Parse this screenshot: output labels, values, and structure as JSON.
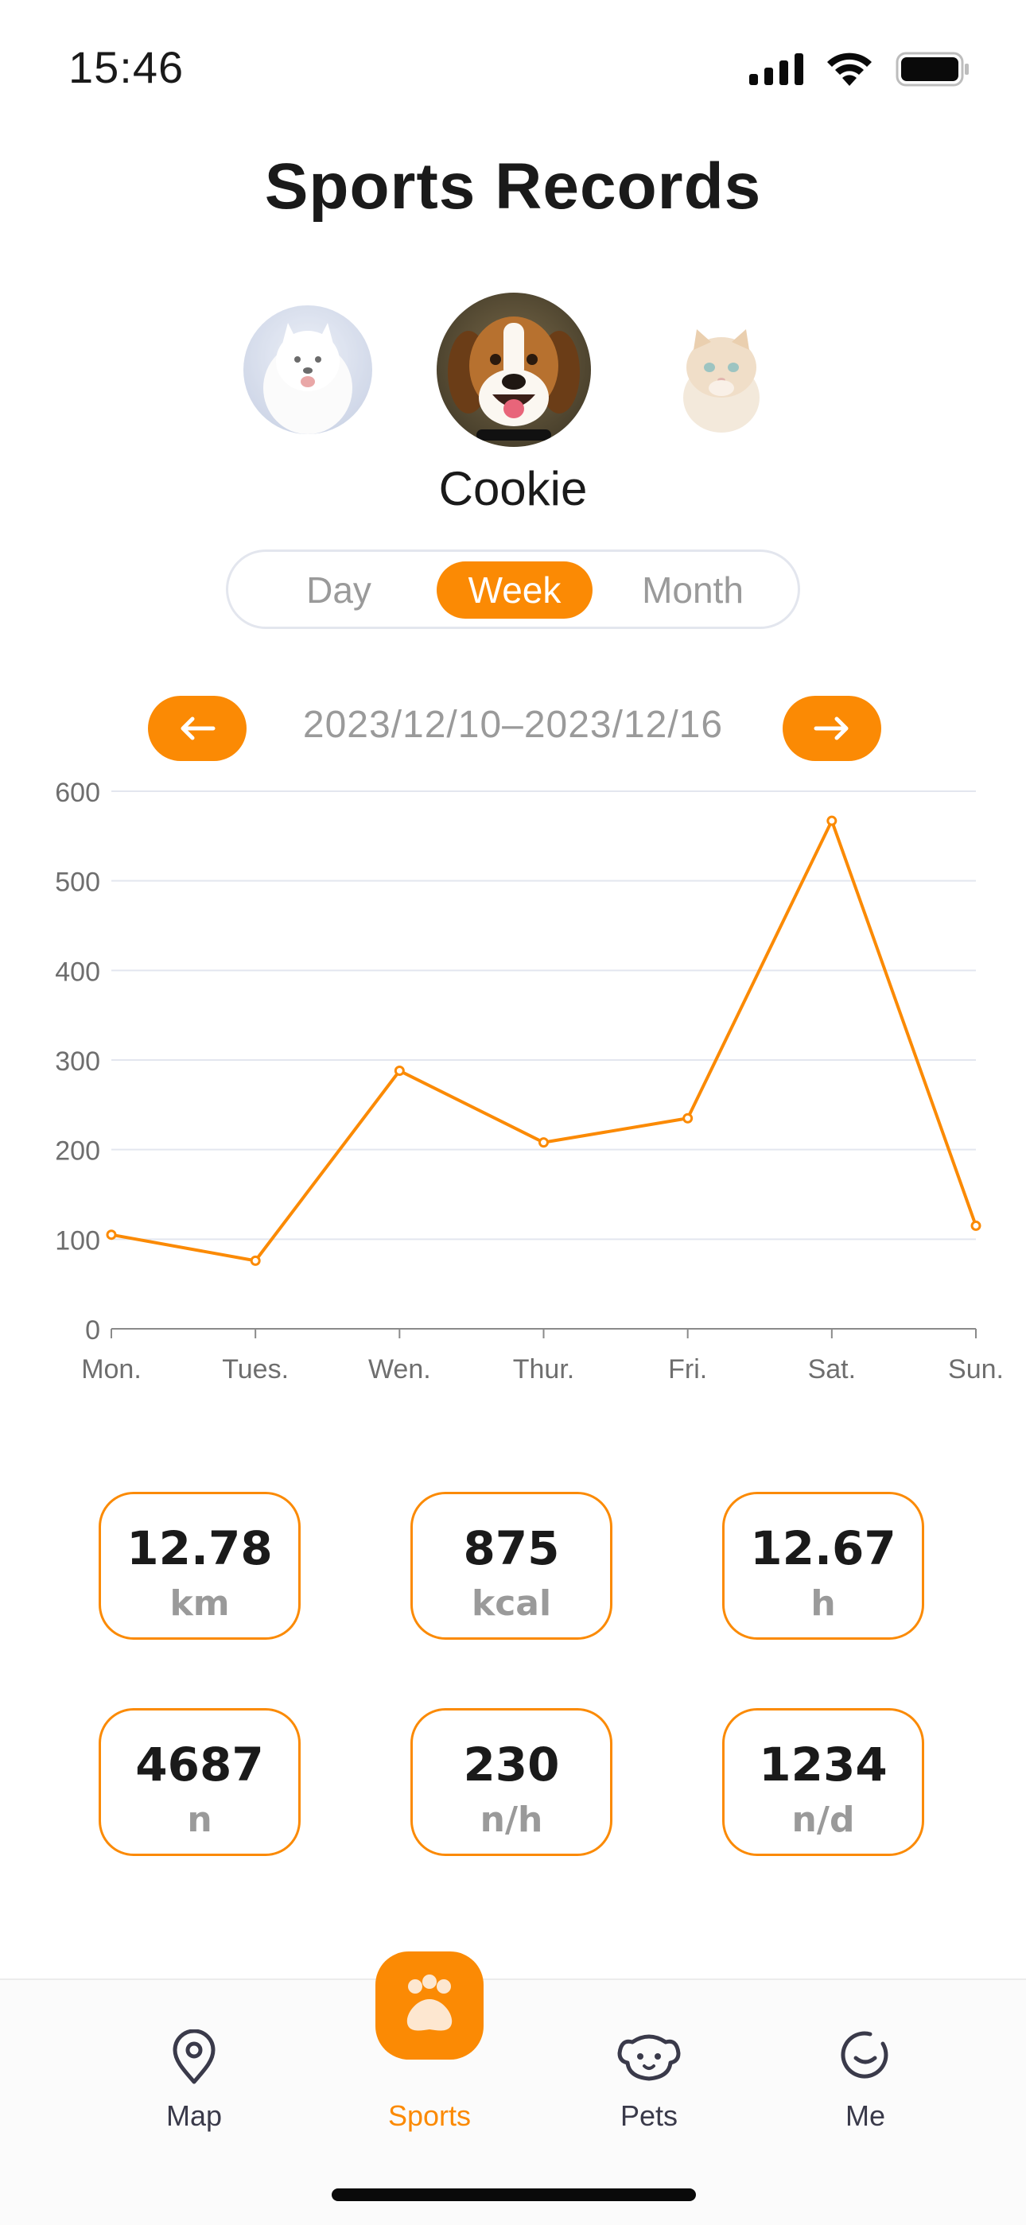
{
  "status": {
    "time": "15:46"
  },
  "header": {
    "title": "Sports Records"
  },
  "pets": {
    "selected_name": "Cookie"
  },
  "period_tabs": {
    "day": "Day",
    "week": "Week",
    "month": "Month",
    "selected": "Week"
  },
  "date_nav": {
    "range": "2023/12/10–2023/12/16",
    "prev_icon": "arrow-left-icon",
    "next_icon": "arrow-right-icon"
  },
  "chart_data": {
    "type": "line",
    "categories": [
      "Mon.",
      "Tues.",
      "Wen.",
      "Thur.",
      "Fri.",
      "Sat.",
      "Sun."
    ],
    "values": [
      105,
      76,
      288,
      208,
      235,
      567,
      115
    ],
    "ylim": [
      0,
      600
    ],
    "yticks": [
      0,
      100,
      200,
      300,
      400,
      500,
      600
    ],
    "grid": true,
    "color": "#fb8a04"
  },
  "stats": [
    {
      "value": "12.78",
      "unit": "km"
    },
    {
      "value": "875",
      "unit": "kcal"
    },
    {
      "value": "12.67",
      "unit": "h"
    },
    {
      "value": "4687",
      "unit": "n"
    },
    {
      "value": "230",
      "unit": "n/h"
    },
    {
      "value": "1234",
      "unit": "n/d"
    }
  ],
  "tabbar": {
    "map": "Map",
    "sports": "Sports",
    "pets": "Pets",
    "me": "Me",
    "active": "Sports",
    "accent": "#fb8a04"
  }
}
